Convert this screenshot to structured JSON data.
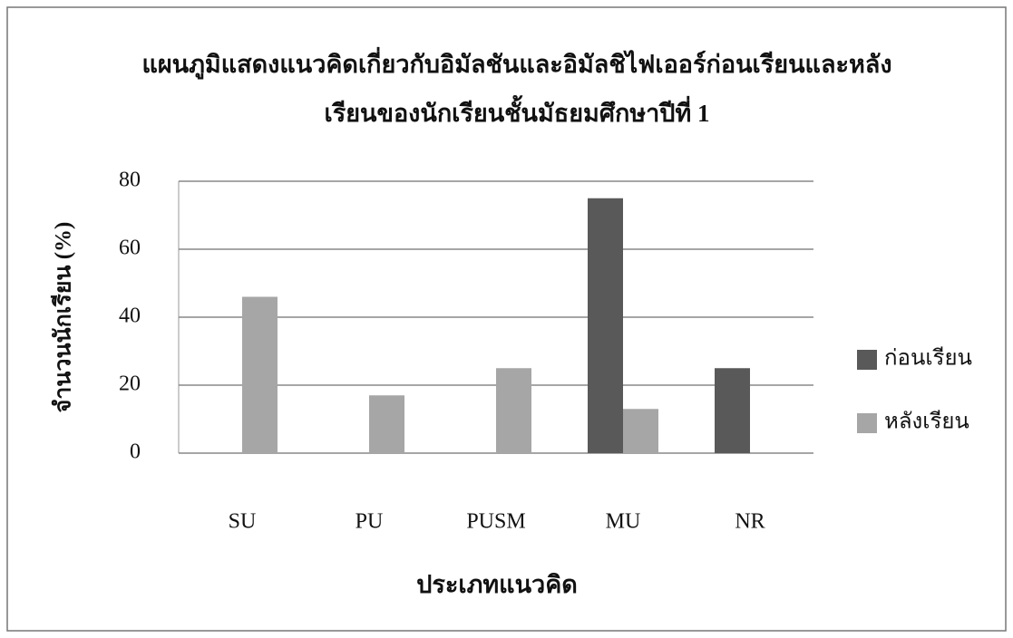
{
  "chart_data": {
    "type": "bar",
    "title": [
      "แผนภูมิแสดงแนวคิดเกี่ยวกับอิมัลชันและอิมัลชิไฟเออร์ก่อนเรียนและหลัง",
      "เรียนของนักเรียนชั้นมัธยมศึกษาปีที่ 1"
    ],
    "y_label": "จำนวนนักเรียน (%)",
    "x_label": "ประเภทแนวคิด",
    "categories": [
      "SU",
      "PU",
      "PUSM",
      "MU",
      "NR"
    ],
    "series": [
      {
        "name": "ก่อนเรียน",
        "color": "#595959",
        "values": [
          0,
          0,
          0,
          75,
          25
        ]
      },
      {
        "name": "หลังเรียน",
        "color": "#a6a6a6",
        "values": [
          46,
          17,
          25,
          13,
          0
        ]
      }
    ],
    "ylim": [
      0,
      80
    ],
    "yticks": [
      0,
      20,
      40,
      60,
      80
    ],
    "grid": true,
    "legend": "right"
  }
}
